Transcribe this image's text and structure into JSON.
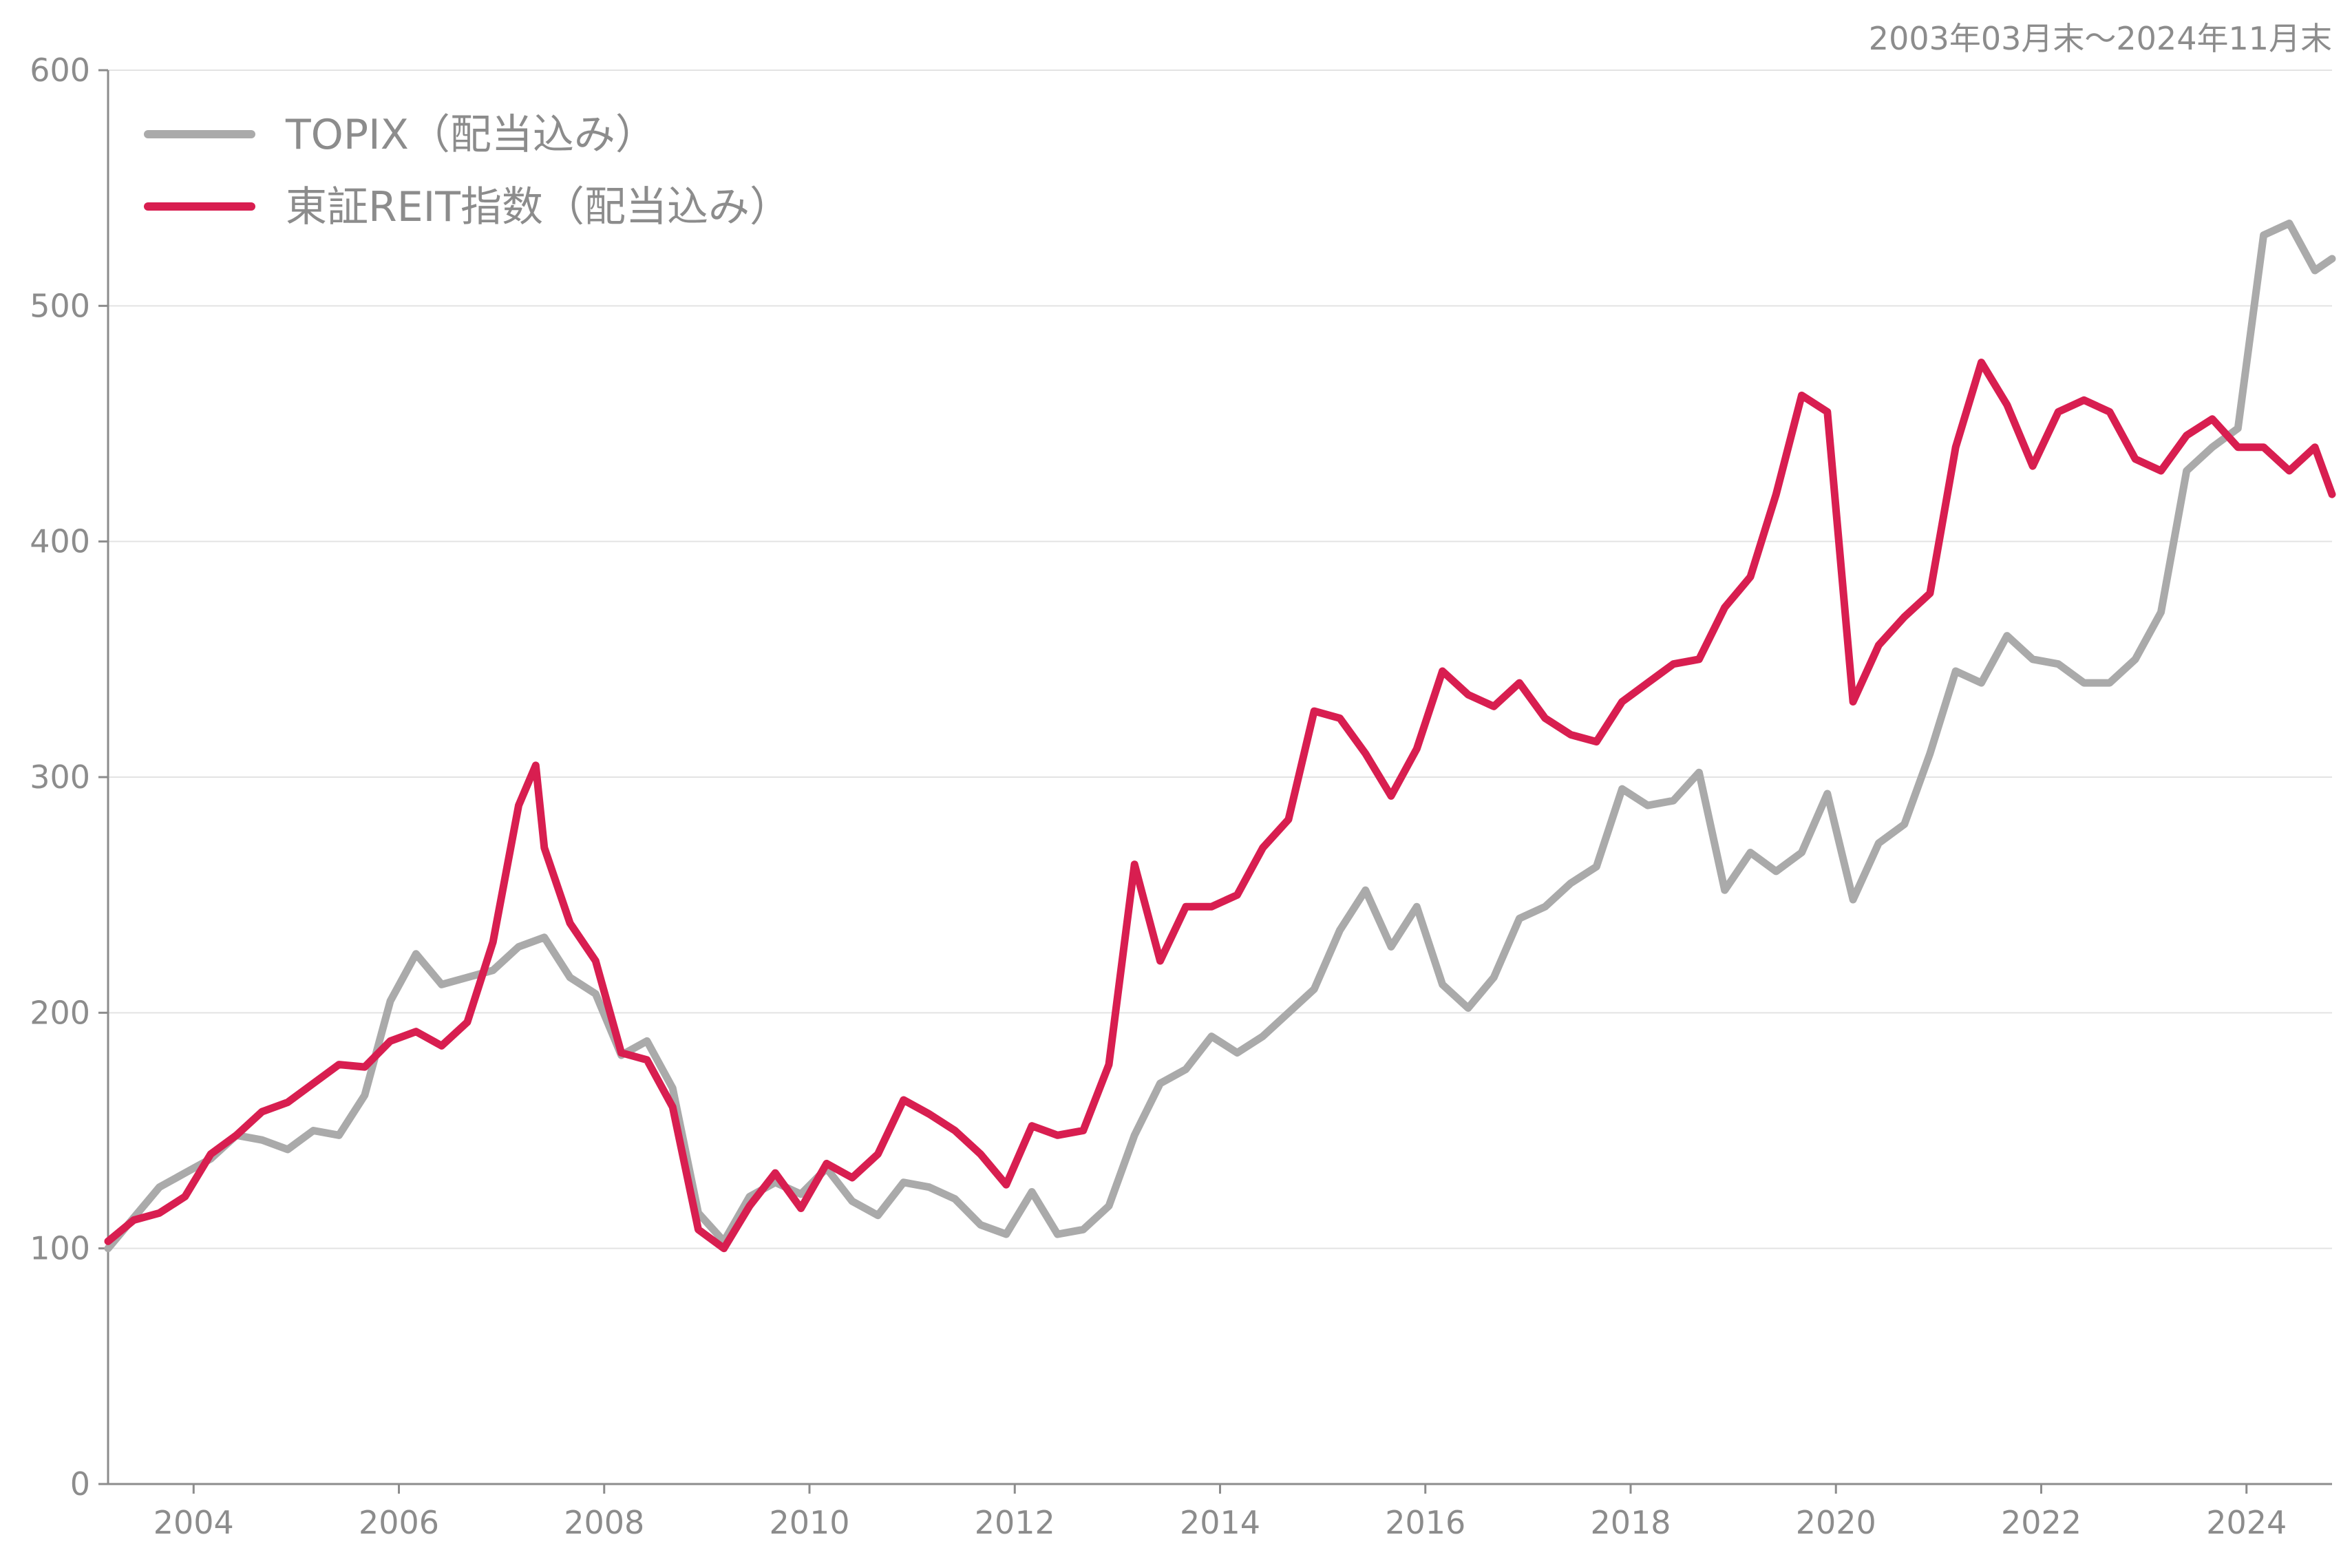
{
  "chart_data": {
    "type": "line",
    "period_label": "2003年03月末〜2024年11月末",
    "x_range": [
      "2003-03",
      "2024-11"
    ],
    "xticks": [
      "2004",
      "2006",
      "2008",
      "2010",
      "2012",
      "2014",
      "2016",
      "2018",
      "2020",
      "2022",
      "2024"
    ],
    "ylim": [
      0,
      600
    ],
    "yticks": [
      "0",
      "100",
      "200",
      "300",
      "400",
      "500",
      "600"
    ],
    "grid": "horizontal",
    "legend_position": "top-left",
    "colors": {
      "TOPIX（配当込み）": "#aaaaaa",
      "東証REIT指数（配当込み）": "#d81e50",
      "grid": "#e3e3e3",
      "axis": "#8c8c8c"
    },
    "series": [
      {
        "name": "TOPIX（配当込み）",
        "points": [
          [
            "2003-03",
            100
          ],
          [
            "2003-06",
            113
          ],
          [
            "2003-09",
            126
          ],
          [
            "2003-12",
            132
          ],
          [
            "2004-03",
            138
          ],
          [
            "2004-06",
            148
          ],
          [
            "2004-09",
            146
          ],
          [
            "2004-12",
            142
          ],
          [
            "2005-03",
            150
          ],
          [
            "2005-06",
            148
          ],
          [
            "2005-09",
            165
          ],
          [
            "2005-12",
            205
          ],
          [
            "2006-03",
            225
          ],
          [
            "2006-06",
            212
          ],
          [
            "2006-09",
            215
          ],
          [
            "2006-12",
            218
          ],
          [
            "2007-03",
            228
          ],
          [
            "2007-06",
            232
          ],
          [
            "2007-09",
            215
          ],
          [
            "2007-12",
            208
          ],
          [
            "2008-03",
            182
          ],
          [
            "2008-06",
            188
          ],
          [
            "2008-09",
            168
          ],
          [
            "2008-12",
            115
          ],
          [
            "2009-03",
            103
          ],
          [
            "2009-06",
            122
          ],
          [
            "2009-09",
            128
          ],
          [
            "2009-12",
            123
          ],
          [
            "2010-03",
            134
          ],
          [
            "2010-06",
            120
          ],
          [
            "2010-09",
            114
          ],
          [
            "2010-12",
            128
          ],
          [
            "2011-03",
            126
          ],
          [
            "2011-06",
            121
          ],
          [
            "2011-09",
            110
          ],
          [
            "2011-12",
            106
          ],
          [
            "2012-03",
            124
          ],
          [
            "2012-06",
            106
          ],
          [
            "2012-09",
            108
          ],
          [
            "2012-12",
            118
          ],
          [
            "2013-03",
            148
          ],
          [
            "2013-06",
            170
          ],
          [
            "2013-09",
            176
          ],
          [
            "2013-12",
            190
          ],
          [
            "2014-03",
            183
          ],
          [
            "2014-06",
            190
          ],
          [
            "2014-09",
            200
          ],
          [
            "2014-12",
            210
          ],
          [
            "2015-03",
            235
          ],
          [
            "2015-06",
            252
          ],
          [
            "2015-09",
            228
          ],
          [
            "2015-12",
            245
          ],
          [
            "2016-03",
            212
          ],
          [
            "2016-06",
            202
          ],
          [
            "2016-09",
            215
          ],
          [
            "2016-12",
            240
          ],
          [
            "2017-03",
            245
          ],
          [
            "2017-06",
            255
          ],
          [
            "2017-09",
            262
          ],
          [
            "2017-12",
            295
          ],
          [
            "2018-03",
            288
          ],
          [
            "2018-06",
            290
          ],
          [
            "2018-09",
            302
          ],
          [
            "2018-12",
            252
          ],
          [
            "2019-03",
            268
          ],
          [
            "2019-06",
            260
          ],
          [
            "2019-09",
            268
          ],
          [
            "2019-12",
            293
          ],
          [
            "2020-03",
            248
          ],
          [
            "2020-06",
            272
          ],
          [
            "2020-09",
            280
          ],
          [
            "2020-12",
            310
          ],
          [
            "2021-03",
            345
          ],
          [
            "2021-06",
            340
          ],
          [
            "2021-09",
            360
          ],
          [
            "2021-12",
            350
          ],
          [
            "2022-03",
            348
          ],
          [
            "2022-06",
            340
          ],
          [
            "2022-09",
            340
          ],
          [
            "2022-12",
            350
          ],
          [
            "2023-03",
            370
          ],
          [
            "2023-06",
            430
          ],
          [
            "2023-09",
            440
          ],
          [
            "2023-12",
            448
          ],
          [
            "2024-03",
            530
          ],
          [
            "2024-06",
            535
          ],
          [
            "2024-09",
            515
          ],
          [
            "2024-11",
            520
          ]
        ]
      },
      {
        "name": "東証REIT指数（配当込み）",
        "points": [
          [
            "2003-03",
            103
          ],
          [
            "2003-06",
            112
          ],
          [
            "2003-09",
            115
          ],
          [
            "2003-12",
            122
          ],
          [
            "2004-03",
            140
          ],
          [
            "2004-06",
            148
          ],
          [
            "2004-09",
            158
          ],
          [
            "2004-12",
            162
          ],
          [
            "2005-03",
            170
          ],
          [
            "2005-06",
            178
          ],
          [
            "2005-09",
            177
          ],
          [
            "2005-12",
            188
          ],
          [
            "2006-03",
            192
          ],
          [
            "2006-06",
            186
          ],
          [
            "2006-09",
            196
          ],
          [
            "2006-12",
            230
          ],
          [
            "2007-03",
            288
          ],
          [
            "2007-05",
            305
          ],
          [
            "2007-06",
            270
          ],
          [
            "2007-09",
            238
          ],
          [
            "2007-12",
            222
          ],
          [
            "2008-03",
            183
          ],
          [
            "2008-06",
            180
          ],
          [
            "2008-09",
            160
          ],
          [
            "2008-12",
            108
          ],
          [
            "2009-03",
            100
          ],
          [
            "2009-06",
            118
          ],
          [
            "2009-09",
            132
          ],
          [
            "2009-12",
            117
          ],
          [
            "2010-03",
            136
          ],
          [
            "2010-06",
            130
          ],
          [
            "2010-09",
            140
          ],
          [
            "2010-12",
            163
          ],
          [
            "2011-03",
            157
          ],
          [
            "2011-06",
            150
          ],
          [
            "2011-09",
            140
          ],
          [
            "2011-12",
            127
          ],
          [
            "2012-03",
            152
          ],
          [
            "2012-06",
            148
          ],
          [
            "2012-09",
            150
          ],
          [
            "2012-12",
            178
          ],
          [
            "2013-03",
            263
          ],
          [
            "2013-06",
            222
          ],
          [
            "2013-09",
            245
          ],
          [
            "2013-12",
            245
          ],
          [
            "2014-03",
            250
          ],
          [
            "2014-06",
            270
          ],
          [
            "2014-09",
            282
          ],
          [
            "2014-12",
            328
          ],
          [
            "2015-03",
            325
          ],
          [
            "2015-06",
            310
          ],
          [
            "2015-09",
            292
          ],
          [
            "2015-12",
            312
          ],
          [
            "2016-03",
            345
          ],
          [
            "2016-06",
            335
          ],
          [
            "2016-09",
            330
          ],
          [
            "2016-12",
            340
          ],
          [
            "2017-03",
            325
          ],
          [
            "2017-06",
            318
          ],
          [
            "2017-09",
            315
          ],
          [
            "2017-12",
            332
          ],
          [
            "2018-03",
            340
          ],
          [
            "2018-06",
            348
          ],
          [
            "2018-09",
            350
          ],
          [
            "2018-12",
            372
          ],
          [
            "2019-03",
            385
          ],
          [
            "2019-06",
            420
          ],
          [
            "2019-09",
            462
          ],
          [
            "2019-12",
            455
          ],
          [
            "2020-03",
            332
          ],
          [
            "2020-06",
            356
          ],
          [
            "2020-09",
            368
          ],
          [
            "2020-12",
            378
          ],
          [
            "2021-03",
            440
          ],
          [
            "2021-06",
            476
          ],
          [
            "2021-09",
            458
          ],
          [
            "2021-12",
            432
          ],
          [
            "2022-03",
            455
          ],
          [
            "2022-06",
            460
          ],
          [
            "2022-09",
            455
          ],
          [
            "2022-12",
            435
          ],
          [
            "2023-03",
            430
          ],
          [
            "2023-06",
            445
          ],
          [
            "2023-09",
            452
          ],
          [
            "2023-12",
            440
          ],
          [
            "2024-03",
            440
          ],
          [
            "2024-06",
            430
          ],
          [
            "2024-09",
            440
          ],
          [
            "2024-11",
            420
          ]
        ]
      }
    ]
  }
}
